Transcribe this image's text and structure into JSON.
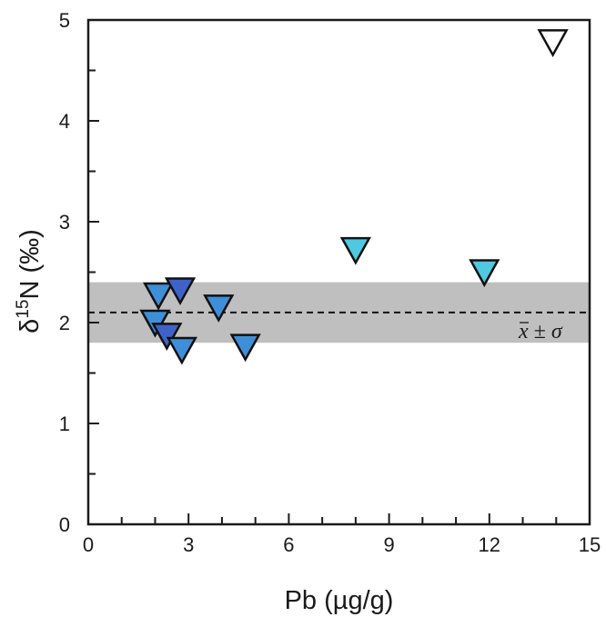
{
  "chart_data": {
    "type": "scatter",
    "title": "",
    "xlabel": "Pb (µg/g)",
    "ylabel_prefix": "δ",
    "ylabel_sup": "15",
    "ylabel_suffix": "N (‰)",
    "xlim": [
      0,
      15
    ],
    "ylim": [
      0,
      5
    ],
    "x_ticks": [
      0,
      3,
      6,
      9,
      12,
      15
    ],
    "y_ticks": [
      0,
      1,
      2,
      3,
      4,
      5
    ],
    "x_minor_step": 1,
    "y_minor_step": 0.5,
    "grid": false,
    "legend": "none",
    "marker": "triangle-down",
    "points": [
      {
        "x": 2.1,
        "y": 2.27,
        "color": "#3f8fd8"
      },
      {
        "x": 2.75,
        "y": 2.32,
        "color": "#3f62c9"
      },
      {
        "x": 2.0,
        "y": 2.0,
        "color": "#3f8fd8"
      },
      {
        "x": 2.35,
        "y": 1.87,
        "color": "#3f62c9"
      },
      {
        "x": 2.8,
        "y": 1.73,
        "color": "#3f8fd8"
      },
      {
        "x": 3.9,
        "y": 2.15,
        "color": "#3f8fd8"
      },
      {
        "x": 4.7,
        "y": 1.76,
        "color": "#3f8fd8"
      },
      {
        "x": 8.0,
        "y": 2.72,
        "color": "#4fc8e0"
      },
      {
        "x": 11.85,
        "y": 2.5,
        "color": "#4fc8e0"
      },
      {
        "x": 13.9,
        "y": 4.78,
        "color": "#ffffff"
      }
    ],
    "mean_line": {
      "y": 2.1,
      "style": "dashed"
    },
    "band": {
      "y_low": 1.8,
      "y_high": 2.4,
      "color": "#bfbfbf"
    },
    "band_label": {
      "mean_symbol": "x",
      "rest": " ± σ"
    }
  }
}
